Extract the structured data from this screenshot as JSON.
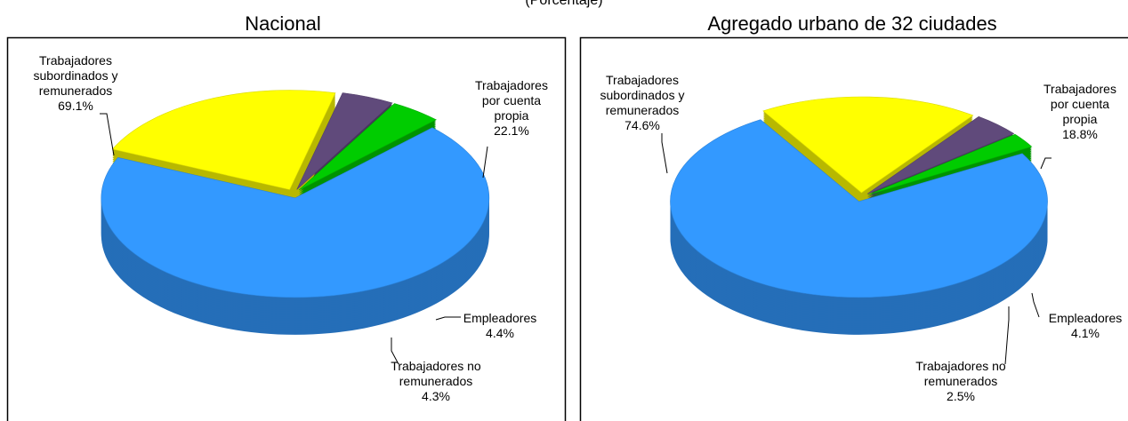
{
  "subtitle": "(Porcentaje)",
  "chart_data": [
    {
      "type": "pie3d",
      "title": "Nacional",
      "categories": [
        "Trabajadores subordinados y remunerados",
        "Trabajadores por cuenta propia",
        "Empleadores",
        "Trabajadores no remunerados"
      ],
      "values": [
        69.1,
        22.1,
        4.4,
        4.3
      ],
      "value_labels": [
        "69.1%",
        "22.1%",
        "4.4%",
        "4.3%"
      ],
      "colors": [
        "#3399ff",
        "#ffff00",
        "#604a7b",
        "#00cc00"
      ]
    },
    {
      "type": "pie3d",
      "title": "Agregado urbano de 32 ciudades",
      "categories": [
        "Trabajadores subordinados y remunerados",
        "Trabajadores por cuenta propia",
        "Empleadores",
        "Trabajadores no remunerados"
      ],
      "values": [
        74.6,
        18.8,
        4.1,
        2.5
      ],
      "value_labels": [
        "74.6%",
        "18.8%",
        "4.1%",
        "2.5%"
      ],
      "colors": [
        "#3399ff",
        "#ffff00",
        "#604a7b",
        "#00cc00"
      ]
    }
  ]
}
